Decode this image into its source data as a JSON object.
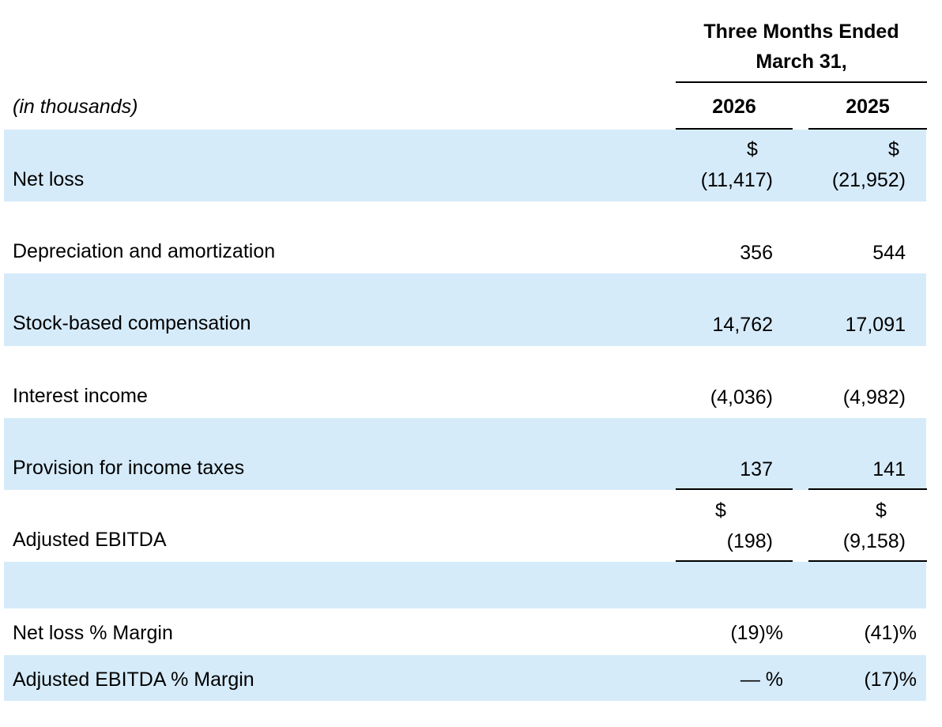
{
  "header": {
    "period_line1": "Three Months Ended",
    "period_line2": "March 31,",
    "units": "(in thousands)",
    "years": [
      "2026",
      "2025"
    ]
  },
  "rows": [
    {
      "label": "Net loss",
      "c2026_symbol": "$",
      "c2026": "(11,417)",
      "c2025_symbol": "$",
      "c2025": "(21,952)"
    },
    {
      "label": "Depreciation and amortization",
      "c2026": "356",
      "c2025": "544"
    },
    {
      "label": "Stock-based compensation",
      "c2026": "14,762",
      "c2025": "17,091"
    },
    {
      "label": "Interest income",
      "c2026": "(4,036)",
      "c2025": "(4,982)"
    },
    {
      "label": "Provision for income taxes",
      "c2026": "137",
      "c2025": "141"
    },
    {
      "label": "Adjusted EBITDA",
      "c2026_symbol": "$",
      "c2026": "(198)",
      "c2025_symbol": "$",
      "c2025": "(9,158)"
    },
    {
      "label": "Net loss % Margin",
      "c2026": "(19)%",
      "c2025": "(41)%"
    },
    {
      "label": "Adjusted EBITDA % Margin",
      "c2026": "— %",
      "c2025": "(17)%"
    }
  ],
  "colors": {
    "band": "#d6ebfa",
    "text": "#000000",
    "rule": "#000000"
  }
}
